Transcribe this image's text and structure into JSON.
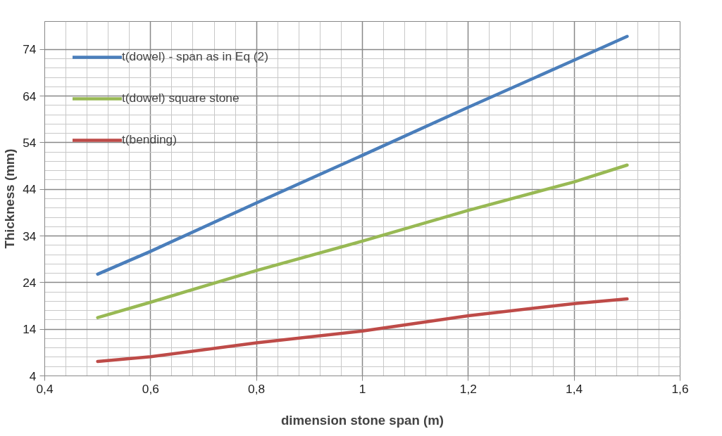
{
  "chart_data": {
    "type": "line",
    "xlabel": "dimension stone span (m)",
    "ylabel": "Thickness (mm)",
    "x": [
      0.5,
      0.6,
      0.8,
      1.0,
      1.2,
      1.4,
      1.5
    ],
    "series": [
      {
        "name": "t(dowel) - span as in Eq (2)",
        "color": "#4a7ebb",
        "values": [
          25.8,
          30.7,
          41.1,
          51.3,
          61.6,
          71.7,
          76.8
        ]
      },
      {
        "name": "t(dowel) square stone",
        "color": "#98b954",
        "values": [
          16.5,
          19.8,
          26.6,
          32.9,
          39.5,
          45.6,
          49.2
        ]
      },
      {
        "name": "t(bending)",
        "color": "#be4b48",
        "values": [
          7.1,
          8.1,
          11.1,
          13.6,
          16.9,
          19.5,
          20.5
        ]
      }
    ],
    "xlim": [
      0.4,
      1.6
    ],
    "ylim": [
      4,
      80
    ],
    "xticks": [
      {
        "value": 0.4,
        "label": "0,4"
      },
      {
        "value": 0.6,
        "label": "0,6"
      },
      {
        "value": 0.8,
        "label": "0,8"
      },
      {
        "value": 1.0,
        "label": "1"
      },
      {
        "value": 1.2,
        "label": "1,2"
      },
      {
        "value": 1.4,
        "label": "1,4"
      },
      {
        "value": 1.6,
        "label": "1,6"
      }
    ],
    "yticks": [
      4,
      14,
      24,
      34,
      44,
      54,
      64,
      74
    ],
    "grid": true,
    "legend": "top left",
    "marker": "none",
    "line_style": "solid"
  }
}
